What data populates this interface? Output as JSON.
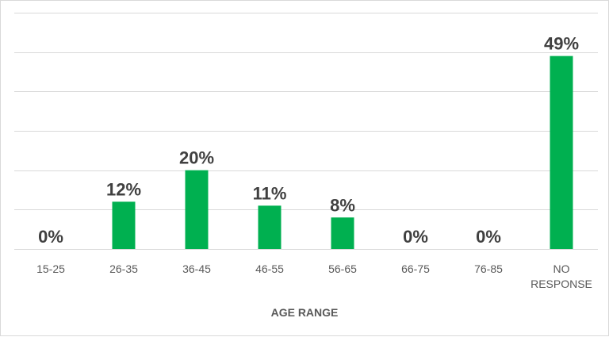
{
  "chart_data": {
    "type": "bar",
    "categories": [
      "15-25",
      "26-35",
      "36-45",
      "46-55",
      "56-65",
      "66-75",
      "76-85",
      "NO RESPONSE"
    ],
    "values": [
      0,
      12,
      20,
      11,
      8,
      0,
      0,
      49
    ],
    "data_labels": [
      "0%",
      "12%",
      "20%",
      "11%",
      "8%",
      "0%",
      "0%",
      "49%"
    ],
    "xlabel": "AGE RANGE",
    "ylabel": "",
    "ylim": [
      0,
      60
    ],
    "grid": true,
    "legend": "none",
    "colors": {
      "bar": "#00b050",
      "grid": "#d9d9d9",
      "label": "#404040",
      "tick": "#595959"
    }
  }
}
